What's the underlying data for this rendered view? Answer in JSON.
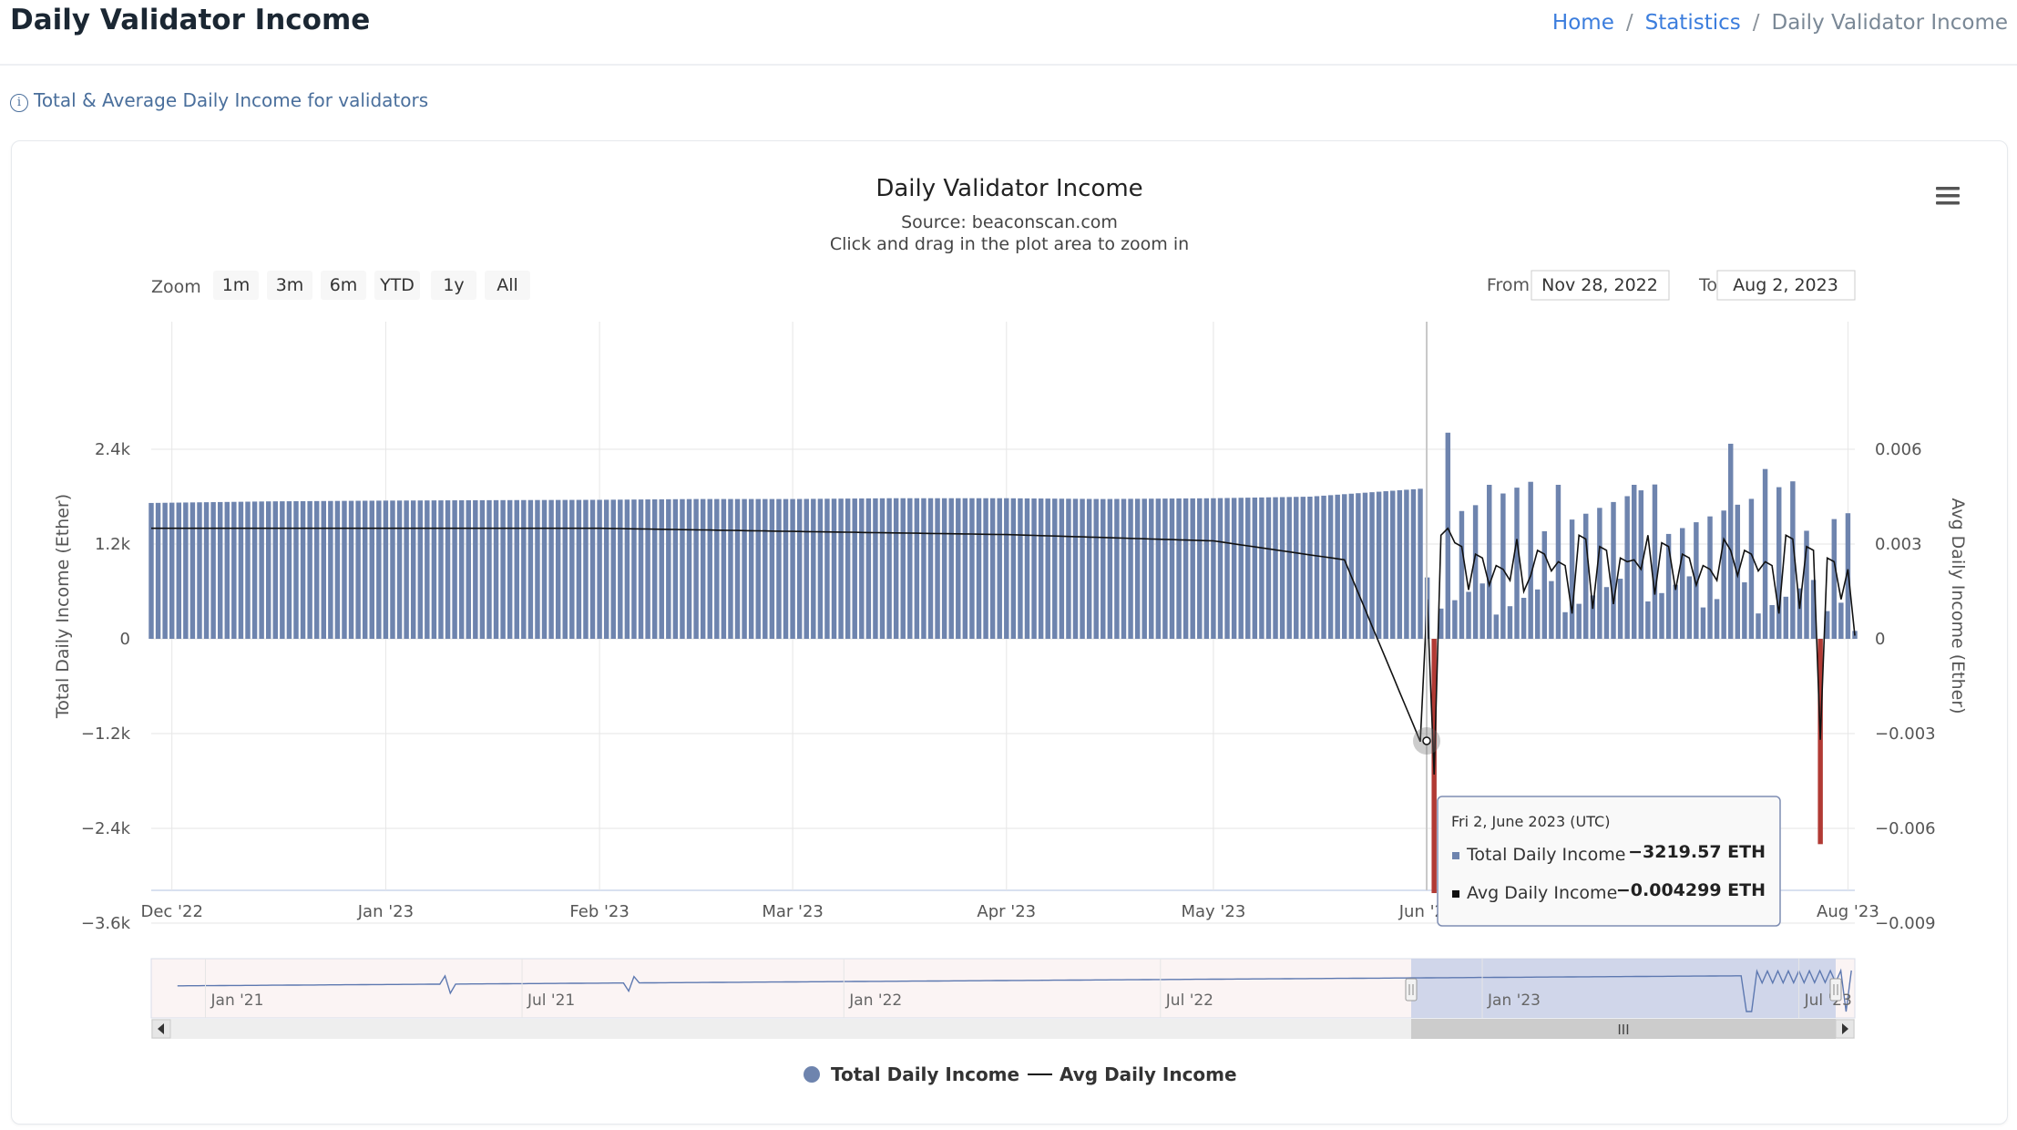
{
  "header": {
    "title": "Daily Validator Income",
    "breadcrumb": [
      {
        "label": "Home",
        "link": true
      },
      {
        "label": "Statistics",
        "link": true
      },
      {
        "label": "Daily Validator Income",
        "link": false
      }
    ]
  },
  "info": {
    "text": "Total & Average Daily Income for validators"
  },
  "chart": {
    "title": "Daily Validator Income",
    "source": "Source: beaconscan.com",
    "hint": "Click and drag in the plot area to zoom in",
    "zoom_label": "Zoom",
    "zoom_buttons": [
      "1m",
      "3m",
      "6m",
      "YTD",
      "1y",
      "All"
    ],
    "from_label": "From",
    "from_value": "Nov 28, 2022",
    "to_label": "To",
    "to_value": "Aug 2, 2023",
    "menu_icon": "hamburger-menu-icon",
    "navigator_labels": [
      "Jan '21",
      "Jul '21",
      "Jan '22",
      "Jul '22",
      "Jan '23",
      "Jul '23"
    ],
    "tooltip": {
      "date": "Fri 2, June 2023 (UTC)",
      "rows": [
        {
          "label": "Total Daily Income",
          "value": "−3219.57 ETH"
        },
        {
          "label": "Avg Daily Income",
          "value": "−0.004299 ETH"
        }
      ]
    },
    "legend": [
      {
        "label": "Total Daily Income",
        "symbol": "circle",
        "color": "#6e84ae"
      },
      {
        "label": "Avg Daily Income",
        "symbol": "line",
        "color": "#111111"
      }
    ]
  },
  "colors": {
    "bar_positive": "#6e84ae",
    "bar_negative": "#b13a34",
    "avg_line": "#111111",
    "link": "#3b7ddd",
    "navigator_mask": "#c8d0e8"
  },
  "chart_data": {
    "type": "bar",
    "x_start": "2022-11-28",
    "x_end": "2023-08-02",
    "xlabel": "",
    "ylabel": "Total Daily Income (Ether)",
    "ylabel_right": "Avg Daily Income (Ether)",
    "ylim": [
      -3600,
      3600
    ],
    "ylim_right": [
      -0.009,
      0.009
    ],
    "yticks": [
      "−3.6k",
      "−2.4k",
      "−1.2k",
      "0",
      "1.2k",
      "2.4k"
    ],
    "yticks_right": [
      "−0.009",
      "−0.006",
      "−0.003",
      "0",
      "0.003",
      "0.006"
    ],
    "xticks": [
      "Dec '22",
      "Jan '23",
      "Feb '23",
      "Mar '23",
      "Apr '23",
      "May '23",
      "Jun '23",
      "Aug '23"
    ],
    "grid": true,
    "legend_position": "bottom-center",
    "series": [
      {
        "name": "Total Daily Income",
        "kind": "bar",
        "points": [
          [
            "2022-11-28",
            1720
          ],
          [
            "2022-12-15",
            1740
          ],
          [
            "2023-01-01",
            1750
          ],
          [
            "2023-01-15",
            1755
          ],
          [
            "2023-02-01",
            1760
          ],
          [
            "2023-02-15",
            1770
          ],
          [
            "2023-03-01",
            1770
          ],
          [
            "2023-03-15",
            1780
          ],
          [
            "2023-04-01",
            1780
          ],
          [
            "2023-04-15",
            1770
          ],
          [
            "2023-05-01",
            1780
          ],
          [
            "2023-05-15",
            1800
          ],
          [
            "2023-05-31",
            1900
          ],
          [
            "2023-06-02",
            -3219.57
          ],
          [
            "2023-06-04",
            2610
          ],
          [
            "2023-06-10",
            1950
          ],
          [
            "2023-06-20",
            1950
          ],
          [
            "2023-07-01",
            1950
          ],
          [
            "2023-07-15",
            2470
          ],
          [
            "2023-07-20",
            2150
          ],
          [
            "2023-07-28",
            -2600
          ],
          [
            "2023-08-02",
            100
          ]
        ]
      },
      {
        "name": "Avg Daily Income",
        "kind": "line",
        "points": [
          [
            "2022-11-28",
            0.0035
          ],
          [
            "2023-01-01",
            0.0035
          ],
          [
            "2023-02-01",
            0.0035
          ],
          [
            "2023-03-01",
            0.0034
          ],
          [
            "2023-04-01",
            0.0033
          ],
          [
            "2023-05-01",
            0.0031
          ],
          [
            "2023-05-20",
            0.0025
          ],
          [
            "2023-06-02",
            -0.004299
          ],
          [
            "2023-06-04",
            0.0035
          ],
          [
            "2023-06-15",
            0.0015
          ],
          [
            "2023-07-01",
            0.0025
          ],
          [
            "2023-07-15",
            0.0028
          ],
          [
            "2023-07-28",
            -0.0032
          ],
          [
            "2023-08-02",
            0.0001
          ]
        ]
      }
    ]
  }
}
